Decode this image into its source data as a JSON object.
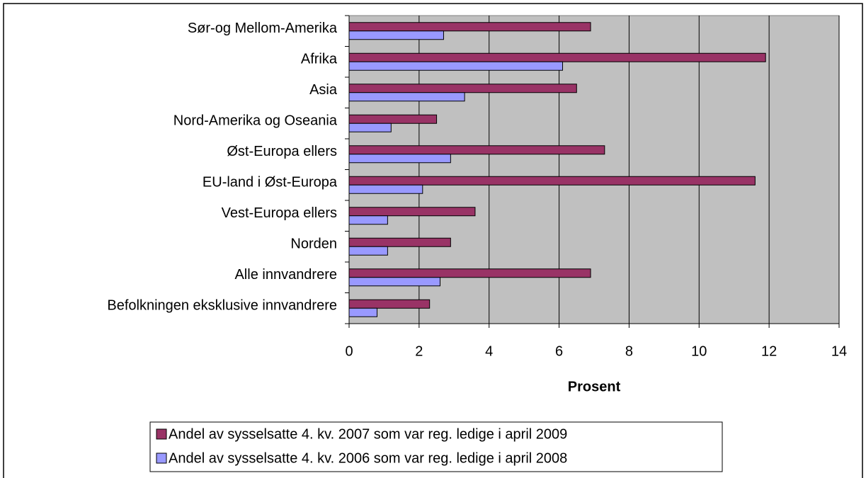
{
  "chart_data": {
    "type": "barh",
    "categories": [
      "Sør-og Mellom-Amerika",
      "Afrika",
      "Asia",
      "Nord-Amerika og Oseania",
      "Øst-Europa ellers",
      "EU-land i Øst-Europa",
      "Vest-Europa ellers",
      "Norden",
      "Alle innvandrere",
      "Befolkningen eksklusive innvandrere"
    ],
    "series": [
      {
        "name": "Andel av sysselsatte 4. kv. 2007 som var reg. ledige i april 2009",
        "color": "#993366",
        "values": [
          6.9,
          11.9,
          6.5,
          2.5,
          7.3,
          11.6,
          3.6,
          2.9,
          6.9,
          2.3
        ]
      },
      {
        "name": "Andel av sysselsatte 4. kv. 2006 som var reg. ledige i april 2008",
        "color": "#9999ff",
        "values": [
          2.7,
          6.1,
          3.3,
          1.2,
          2.9,
          2.1,
          1.1,
          1.1,
          2.6,
          0.8
        ]
      }
    ],
    "xlabel": "Prosent",
    "xlim": [
      0,
      14
    ],
    "xticks": [
      0,
      2,
      4,
      6,
      8,
      10,
      12,
      14
    ],
    "grid": true,
    "plot_background": "#c0c0c0",
    "legend": "bottom"
  }
}
